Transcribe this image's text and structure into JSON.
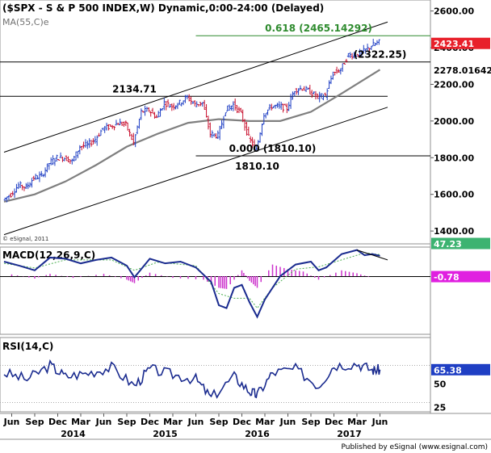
{
  "header": {
    "title": "($SPX - S & P 500 INDEX,W) Dynamic,0:00-24:00 (Delayed)",
    "indicator": "MA(55,C)e",
    "copyright": "© eSignal, 2011"
  },
  "footer": {
    "published": "Published by eSignal (www.esignal.com)"
  },
  "colors": {
    "up_bar": "#1f3fc4",
    "down_bar": "#c8102e",
    "ma_line": "#7f7f7f",
    "trend_line": "#000000",
    "fib_line": "#2e8b2e",
    "macd_line": "#1a2b8f",
    "macd_signal": "#4caf50",
    "macd_hist": "#cc33cc",
    "rsi_line": "#1a2b8f",
    "price_tag": "#e8202a",
    "macd_tag": "#3cb371",
    "hist_tag": "#e020e0",
    "rsi_tag": "#1f3fc4"
  },
  "chart_data": [
    {
      "type": "candlestick",
      "panel": "price",
      "title": "($SPX - S & P 500 INDEX,W) Dynamic,0:00-24:00 (Delayed)",
      "ylim": [
        1330,
        2660
      ],
      "y_ticks": [
        1400,
        1600,
        1800,
        2000,
        2200,
        2400,
        2600
      ],
      "y_tick_labels": [
        "1400.00",
        "1600.00",
        "1800.00",
        "2000.00",
        "2200.00",
        "2400.00",
        "2600.00"
      ],
      "x_labels": [
        "Jun",
        "Sep",
        "Dec",
        "Mar",
        "Jun",
        "Sep",
        "Dec",
        "Mar",
        "Jun",
        "Sep",
        "Dec",
        "Mar",
        "Jun",
        "Sep",
        "Dec",
        "Mar",
        "Jun"
      ],
      "x_label_dates": [
        "2013-06",
        "2013-09",
        "2013-12",
        "2014-03",
        "2014-06",
        "2014-09",
        "2014-12",
        "2015-03",
        "2015-06",
        "2015-09",
        "2015-12",
        "2016-03",
        "2016-06",
        "2016-09",
        "2016-12",
        "2017-03",
        "2017-06"
      ],
      "year_labels": [
        "2014",
        "2015",
        "2016",
        "2017"
      ],
      "year_label_dates": [
        "2014-02",
        "2015-02",
        "2016-02",
        "2017-02"
      ],
      "price_series": {
        "name": "$SPX",
        "weekly_path": [
          [
            "2013-05",
            1570
          ],
          [
            "2013-06",
            1600
          ],
          [
            "2013-07",
            1650
          ],
          [
            "2013-08",
            1640
          ],
          [
            "2013-09",
            1690
          ],
          [
            "2013-10",
            1700
          ],
          [
            "2013-11",
            1770
          ],
          [
            "2013-12",
            1800
          ],
          [
            "2014-01",
            1800
          ],
          [
            "2014-02",
            1780
          ],
          [
            "2014-03",
            1860
          ],
          [
            "2014-04",
            1870
          ],
          [
            "2014-05",
            1900
          ],
          [
            "2014-06",
            1960
          ],
          [
            "2014-07",
            1970
          ],
          [
            "2014-08",
            1990
          ],
          [
            "2014-09",
            1980
          ],
          [
            "2014-10",
            1880
          ],
          [
            "2014-11",
            2050
          ],
          [
            "2014-12",
            2060
          ],
          [
            "2015-01",
            2020
          ],
          [
            "2015-02",
            2100
          ],
          [
            "2015-03",
            2080
          ],
          [
            "2015-04",
            2100
          ],
          [
            "2015-05",
            2130
          ],
          [
            "2015-06",
            2090
          ],
          [
            "2015-07",
            2100
          ],
          [
            "2015-08",
            1930
          ],
          [
            "2015-09",
            1920
          ],
          [
            "2015-10",
            2060
          ],
          [
            "2015-11",
            2090
          ],
          [
            "2015-12",
            2040
          ],
          [
            "2016-01",
            1910
          ],
          [
            "2016-02",
            1840
          ],
          [
            "2016-03",
            2040
          ],
          [
            "2016-04",
            2080
          ],
          [
            "2016-05",
            2080
          ],
          [
            "2016-06",
            2070
          ],
          [
            "2016-07",
            2170
          ],
          [
            "2016-08",
            2180
          ],
          [
            "2016-09",
            2160
          ],
          [
            "2016-10",
            2130
          ],
          [
            "2016-11",
            2140
          ],
          [
            "2016-12",
            2260
          ],
          [
            "2017-01",
            2280
          ],
          [
            "2017-02",
            2360
          ],
          [
            "2017-03",
            2360
          ],
          [
            "2017-04",
            2380
          ],
          [
            "2017-05",
            2410
          ],
          [
            "2017-06",
            2430
          ]
        ]
      },
      "ma_series": {
        "name": "MA(55,C)e",
        "points": [
          [
            "2013-05",
            1560
          ],
          [
            "2013-09",
            1600
          ],
          [
            "2014-01",
            1670
          ],
          [
            "2014-05",
            1760
          ],
          [
            "2014-09",
            1860
          ],
          [
            "2015-01",
            1930
          ],
          [
            "2015-05",
            1990
          ],
          [
            "2015-09",
            2010
          ],
          [
            "2016-01",
            2000
          ],
          [
            "2016-05",
            2000
          ],
          [
            "2016-09",
            2050
          ],
          [
            "2017-01",
            2150
          ],
          [
            "2017-06",
            2280
          ]
        ]
      },
      "trend_lines": [
        {
          "points": [
            [
              "2013-05",
              1830
            ],
            [
              "2017-07",
              2540
            ]
          ]
        },
        {
          "points": [
            [
              "2013-05",
              1380
            ],
            [
              "2017-07",
              2075
            ]
          ]
        }
      ],
      "horizontal_lines": [
        {
          "y": 2134.71,
          "from": "2013-05",
          "to": "2017-07"
        },
        {
          "y": 2322.25,
          "from": "2013-05",
          "to": "2017-08"
        },
        {
          "y": 1810.1,
          "from": "2015-06",
          "to": "2017-08"
        },
        {
          "y": 2465.14292,
          "from": "2015-06",
          "to": "2017-08",
          "style": "fib"
        }
      ],
      "annotations": [
        {
          "text": "2134.71",
          "x": "2014-10",
          "y": 2134.71,
          "anchor": "above"
        },
        {
          "text": "(2322.25)",
          "x": "2017-06",
          "y": 2322.25,
          "anchor": "above"
        },
        {
          "text": "0.618 (2465.14292)",
          "x": "2016-10",
          "y": 2465.14292,
          "anchor": "above"
        },
        {
          "text": "0.000 (1810.10)",
          "x": "2016-04",
          "y": 1810.1,
          "anchor": "above"
        },
        {
          "text": "1810.10",
          "x": "2016-02",
          "y": 1810.1,
          "anchor": "below"
        }
      ],
      "price_tags": [
        {
          "value": 2423.41,
          "label": "2423.41",
          "kind": "price"
        },
        {
          "value": 2278.01642,
          "label": "2278.01642",
          "kind": "ma"
        }
      ]
    },
    {
      "type": "line",
      "panel": "macd",
      "title": "MACD(12,26,9,C)",
      "ylim": [
        -100,
        50
      ],
      "series": [
        {
          "name": "MACD",
          "points": [
            [
              "2013-05",
              25
            ],
            [
              "2013-07",
              18
            ],
            [
              "2013-09",
              10
            ],
            [
              "2013-11",
              32
            ],
            [
              "2014-01",
              30
            ],
            [
              "2014-03",
              22
            ],
            [
              "2014-05",
              28
            ],
            [
              "2014-07",
              32
            ],
            [
              "2014-09",
              18
            ],
            [
              "2014-10",
              -2
            ],
            [
              "2014-12",
              30
            ],
            [
              "2015-02",
              22
            ],
            [
              "2015-04",
              25
            ],
            [
              "2015-06",
              15
            ],
            [
              "2015-08",
              -10
            ],
            [
              "2015-09",
              -50
            ],
            [
              "2015-10",
              -55
            ],
            [
              "2015-11",
              -20
            ],
            [
              "2015-12",
              -15
            ],
            [
              "2016-01",
              -45
            ],
            [
              "2016-02",
              -70
            ],
            [
              "2016-03",
              -40
            ],
            [
              "2016-05",
              0
            ],
            [
              "2016-07",
              20
            ],
            [
              "2016-09",
              25
            ],
            [
              "2016-10",
              10
            ],
            [
              "2016-11",
              15
            ],
            [
              "2017-01",
              38
            ],
            [
              "2017-03",
              45
            ],
            [
              "2017-04",
              36
            ],
            [
              "2017-05",
              38
            ],
            [
              "2017-06",
              35
            ]
          ]
        },
        {
          "name": "Signal",
          "points": [
            [
              "2013-05",
              22
            ],
            [
              "2013-09",
              14
            ],
            [
              "2014-01",
              28
            ],
            [
              "2014-07",
              28
            ],
            [
              "2014-10",
              10
            ],
            [
              "2015-01",
              24
            ],
            [
              "2015-06",
              18
            ],
            [
              "2015-09",
              -30
            ],
            [
              "2015-11",
              -38
            ],
            [
              "2016-01",
              -38
            ],
            [
              "2016-02",
              -55
            ],
            [
              "2016-04",
              -20
            ],
            [
              "2016-07",
              12
            ],
            [
              "2016-10",
              16
            ],
            [
              "2017-01",
              28
            ],
            [
              "2017-04",
              40
            ],
            [
              "2017-06",
              37
            ]
          ]
        },
        {
          "name": "Histogram",
          "bars": [
            [
              "2013-06",
              3
            ],
            [
              "2013-09",
              -4
            ],
            [
              "2013-11",
              4
            ],
            [
              "2014-02",
              -3
            ],
            [
              "2014-06",
              4
            ],
            [
              "2014-09",
              -6
            ],
            [
              "2014-10",
              -12
            ],
            [
              "2014-12",
              6
            ],
            [
              "2015-03",
              -3
            ],
            [
              "2015-07",
              -6
            ],
            [
              "2015-09",
              -20
            ],
            [
              "2015-10",
              -22
            ],
            [
              "2015-12",
              10
            ],
            [
              "2016-01",
              -8
            ],
            [
              "2016-02",
              -20
            ],
            [
              "2016-04",
              20
            ],
            [
              "2016-06",
              12
            ],
            [
              "2016-08",
              8
            ],
            [
              "2016-10",
              -6
            ],
            [
              "2017-01",
              10
            ],
            [
              "2017-03",
              5
            ],
            [
              "2017-05",
              -3
            ]
          ]
        }
      ],
      "trend_lines": [
        {
          "points": [
            [
              "2017-03",
              45
            ],
            [
              "2017-07",
              28
            ]
          ]
        }
      ],
      "horizontal_lines": [
        {
          "y": -0.78
        }
      ],
      "value_tags": [
        {
          "value": 47.23,
          "label": "47.23",
          "kind": "macd"
        },
        {
          "value": -0.78,
          "label": "-0.78",
          "kind": "hist"
        }
      ]
    },
    {
      "type": "line",
      "panel": "rsi",
      "title": "RSI(14,C)",
      "ylim": [
        20,
        100
      ],
      "y_ticks": [
        50,
        25
      ],
      "y_tick_labels": [
        "50",
        "25"
      ],
      "series": [
        {
          "name": "RSI",
          "points": [
            [
              "2013-05",
              62
            ],
            [
              "2013-08",
              55
            ],
            [
              "2013-11",
              70
            ],
            [
              "2014-01",
              58
            ],
            [
              "2014-04",
              62
            ],
            [
              "2014-07",
              68
            ],
            [
              "2014-10",
              48
            ],
            [
              "2014-12",
              66
            ],
            [
              "2015-03",
              60
            ],
            [
              "2015-06",
              55
            ],
            [
              "2015-08",
              35
            ],
            [
              "2015-11",
              58
            ],
            [
              "2016-01",
              42
            ],
            [
              "2016-02",
              38
            ],
            [
              "2016-04",
              62
            ],
            [
              "2016-07",
              66
            ],
            [
              "2016-10",
              48
            ],
            [
              "2016-12",
              70
            ],
            [
              "2017-03",
              72
            ],
            [
              "2017-05",
              65
            ],
            [
              "2017-06",
              65.38
            ]
          ]
        }
      ],
      "horizontal_lines": [
        {
          "y": 70
        },
        {
          "y": 30
        }
      ],
      "value_tags": [
        {
          "value": 65.38,
          "label": "65.38",
          "kind": "rsi"
        }
      ]
    }
  ]
}
